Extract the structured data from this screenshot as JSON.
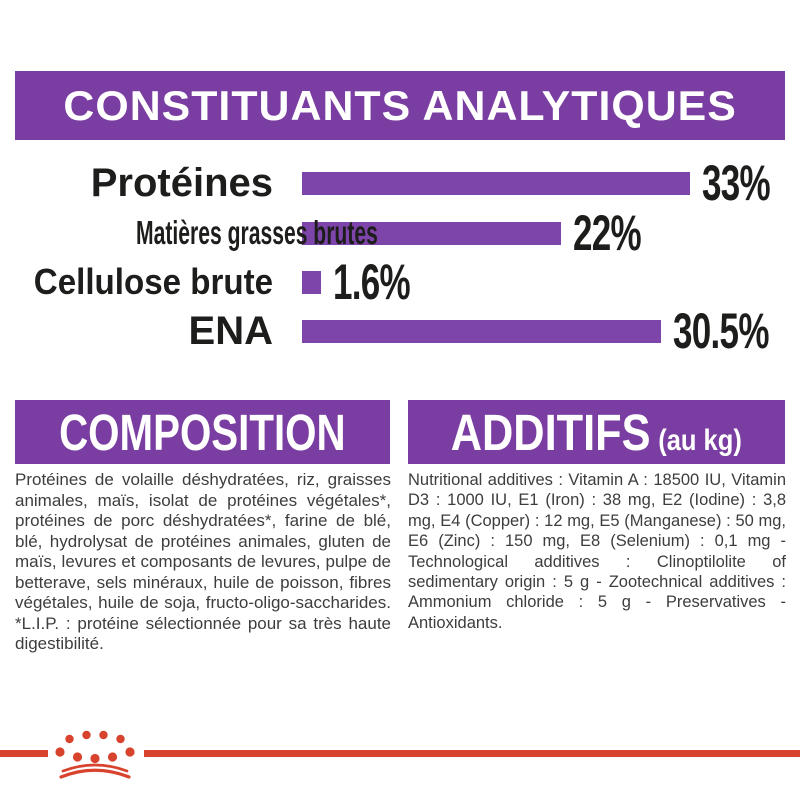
{
  "header": {
    "title": "CONSTITUANTS ANALYTIQUES"
  },
  "chart_data": {
    "type": "bar",
    "orientation": "horizontal",
    "categories": [
      "Protéines",
      "Matières grasses brutes",
      "Cellulose brute",
      "ENA"
    ],
    "values": [
      33,
      22,
      1.6,
      30.5
    ],
    "value_labels": [
      "33%",
      "22%",
      "1.6%",
      "30.5%"
    ],
    "xlim": [
      0,
      33
    ],
    "bar_color": "#7d44aa",
    "grid": false,
    "legend": false
  },
  "composition": {
    "title": "COMPOSITION",
    "body": "Protéines de volaille déshydratées, riz, graisses animales, maïs, isolat de protéines végétales*, protéines de porc déshydratées*, farine de blé, blé, hydrolysat de protéines animales, gluten de maïs, levures et composants de levures, pulpe de betterave, sels minéraux, huile de poisson, fibres végétales, huile de soja, fructo-oligo-saccharides. *L.I.P. : protéine sélectionnée pour sa très haute digestibilité."
  },
  "additifs": {
    "title": "ADDITIFS",
    "unit": "(au kg)",
    "body": "Nutritional additives : Vitamin A : 18500 IU, Vitamin D3 : 1000 IU, E1 (Iron) : 38 mg, E2 (Iodine) : 3,8 mg, E4 (Copper) : 12 mg, E5 (Manganese) : 50 mg, E6 (Zinc) : 150 mg, E8 (Selenium) : 0,1 mg - Technological additives : Clinoptilolite of sedimentary origin : 5 g - Zootechnical additives : Ammonium chloride : 5 g - Preservatives - Antioxidants."
  },
  "footer": {
    "brand_icon": "royal-canin-crown-icon",
    "accent_color": "#d8432e"
  },
  "colors": {
    "banner_purple": "#7a3da1",
    "bar_purple": "#7d44aa",
    "heading_text": "#ffffff",
    "label_text": "#1d1d1b",
    "body_text": "#3d3d3d"
  }
}
